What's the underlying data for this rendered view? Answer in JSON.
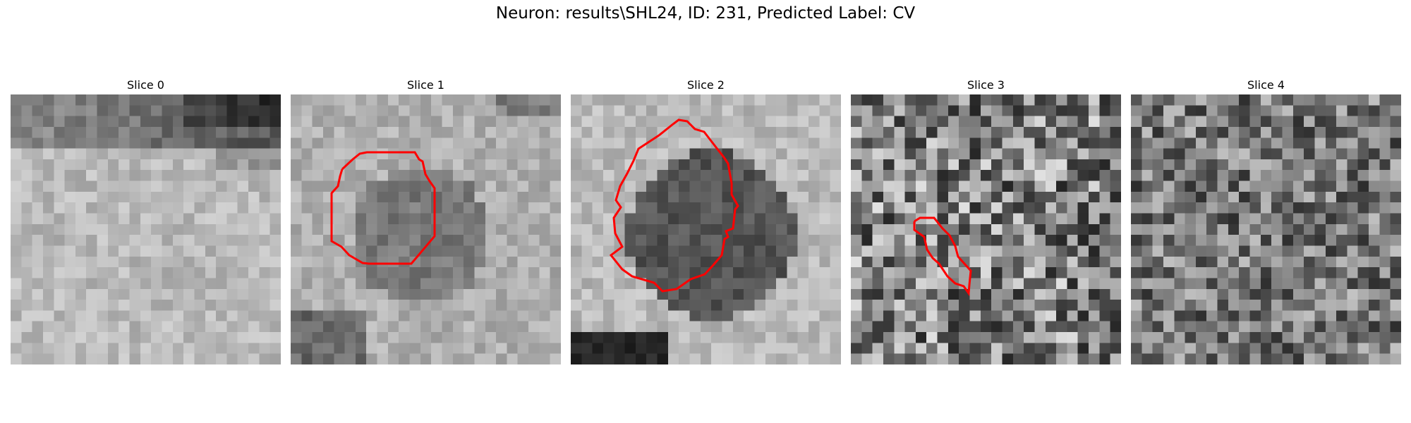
{
  "figure": {
    "title": "Neuron: results\\SHL24, ID: 231, Predicted Label: CV"
  },
  "colors": {
    "contour": "#ff0000",
    "background": "#ffffff",
    "colormap": "gray"
  },
  "slices": [
    {
      "label": "Slice 0",
      "has_contour": false
    },
    {
      "label": "Slice 1",
      "has_contour": true
    },
    {
      "label": "Slice 2",
      "has_contour": true
    },
    {
      "label": "Slice 3",
      "has_contour": true
    },
    {
      "label": "Slice 4",
      "has_contour": false
    }
  ]
}
